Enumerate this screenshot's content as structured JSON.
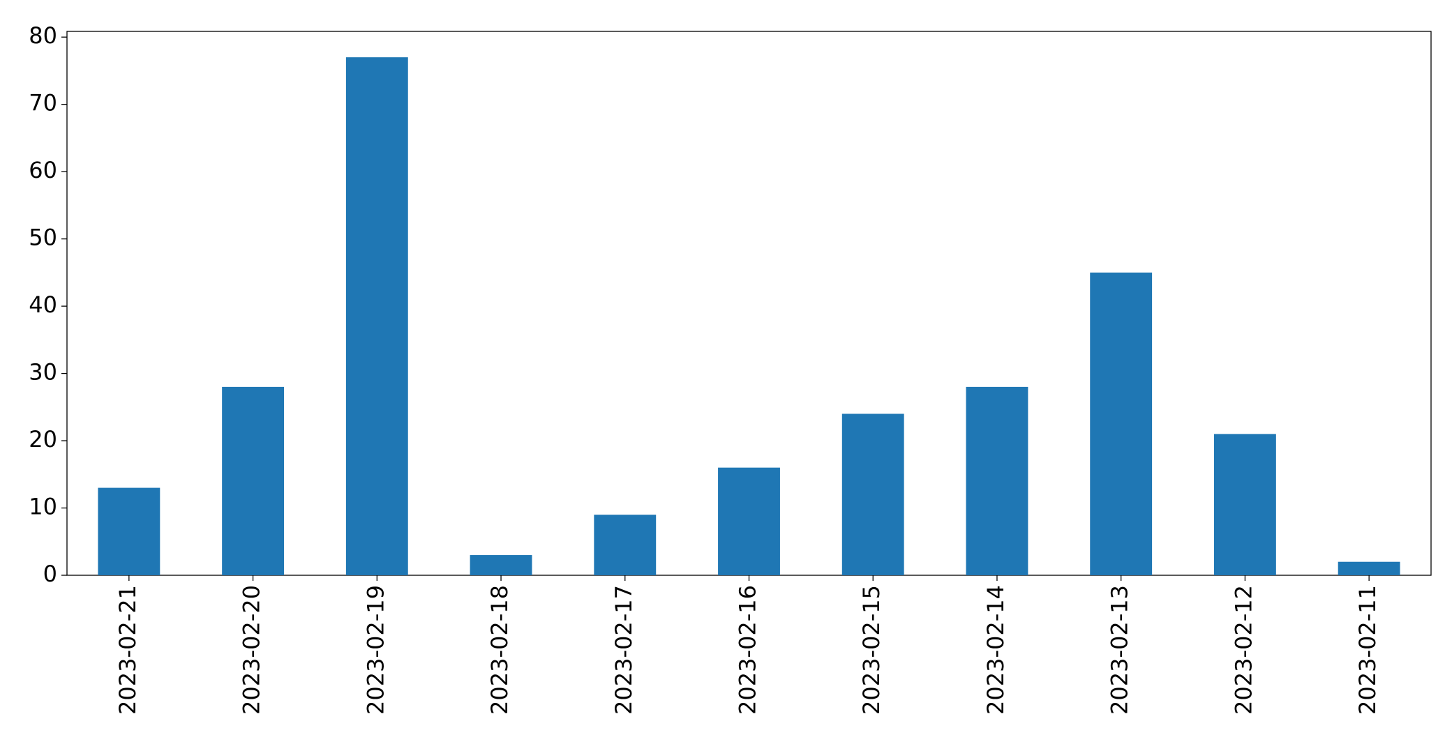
{
  "chart_data": {
    "type": "bar",
    "categories": [
      "2023-02-21",
      "2023-02-20",
      "2023-02-19",
      "2023-02-18",
      "2023-02-17",
      "2023-02-16",
      "2023-02-15",
      "2023-02-14",
      "2023-02-13",
      "2023-02-12",
      "2023-02-11"
    ],
    "values": [
      13,
      28,
      77,
      3,
      9,
      16,
      24,
      28,
      45,
      21,
      2
    ],
    "color": "#1f77b4",
    "ylim": [
      0,
      80.85
    ],
    "yticks": [
      0,
      10,
      20,
      30,
      40,
      50,
      60,
      70,
      80
    ],
    "grid": false
  }
}
